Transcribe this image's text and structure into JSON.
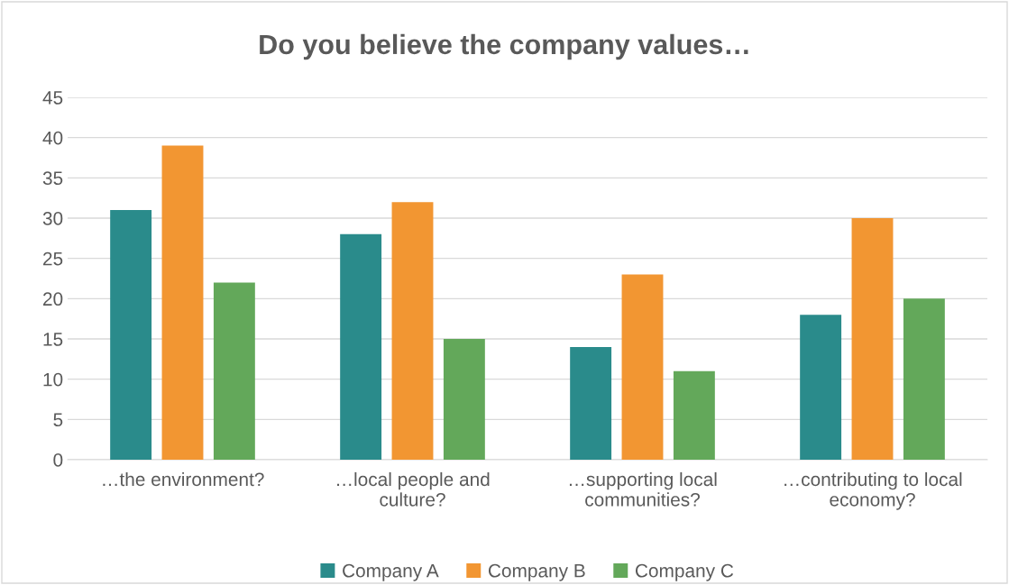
{
  "chart_data": {
    "type": "bar",
    "title": "Do you believe the company values…",
    "categories": [
      "…the environment?",
      "…local people and culture?",
      "…supporting local communities?",
      "…contributing to local economy?"
    ],
    "series": [
      {
        "name": "Company A",
        "color": "#2a8b8b",
        "values": [
          31,
          28,
          14,
          18
        ]
      },
      {
        "name": "Company B",
        "color": "#f29632",
        "values": [
          39,
          32,
          23,
          30
        ]
      },
      {
        "name": "Company C",
        "color": "#63a85a",
        "values": [
          22,
          15,
          11,
          20
        ]
      }
    ],
    "ylim": [
      0,
      45
    ],
    "yticks": [
      0,
      5,
      10,
      15,
      20,
      25,
      30,
      35,
      40,
      45
    ],
    "grid": "y",
    "legend": "bottom"
  }
}
